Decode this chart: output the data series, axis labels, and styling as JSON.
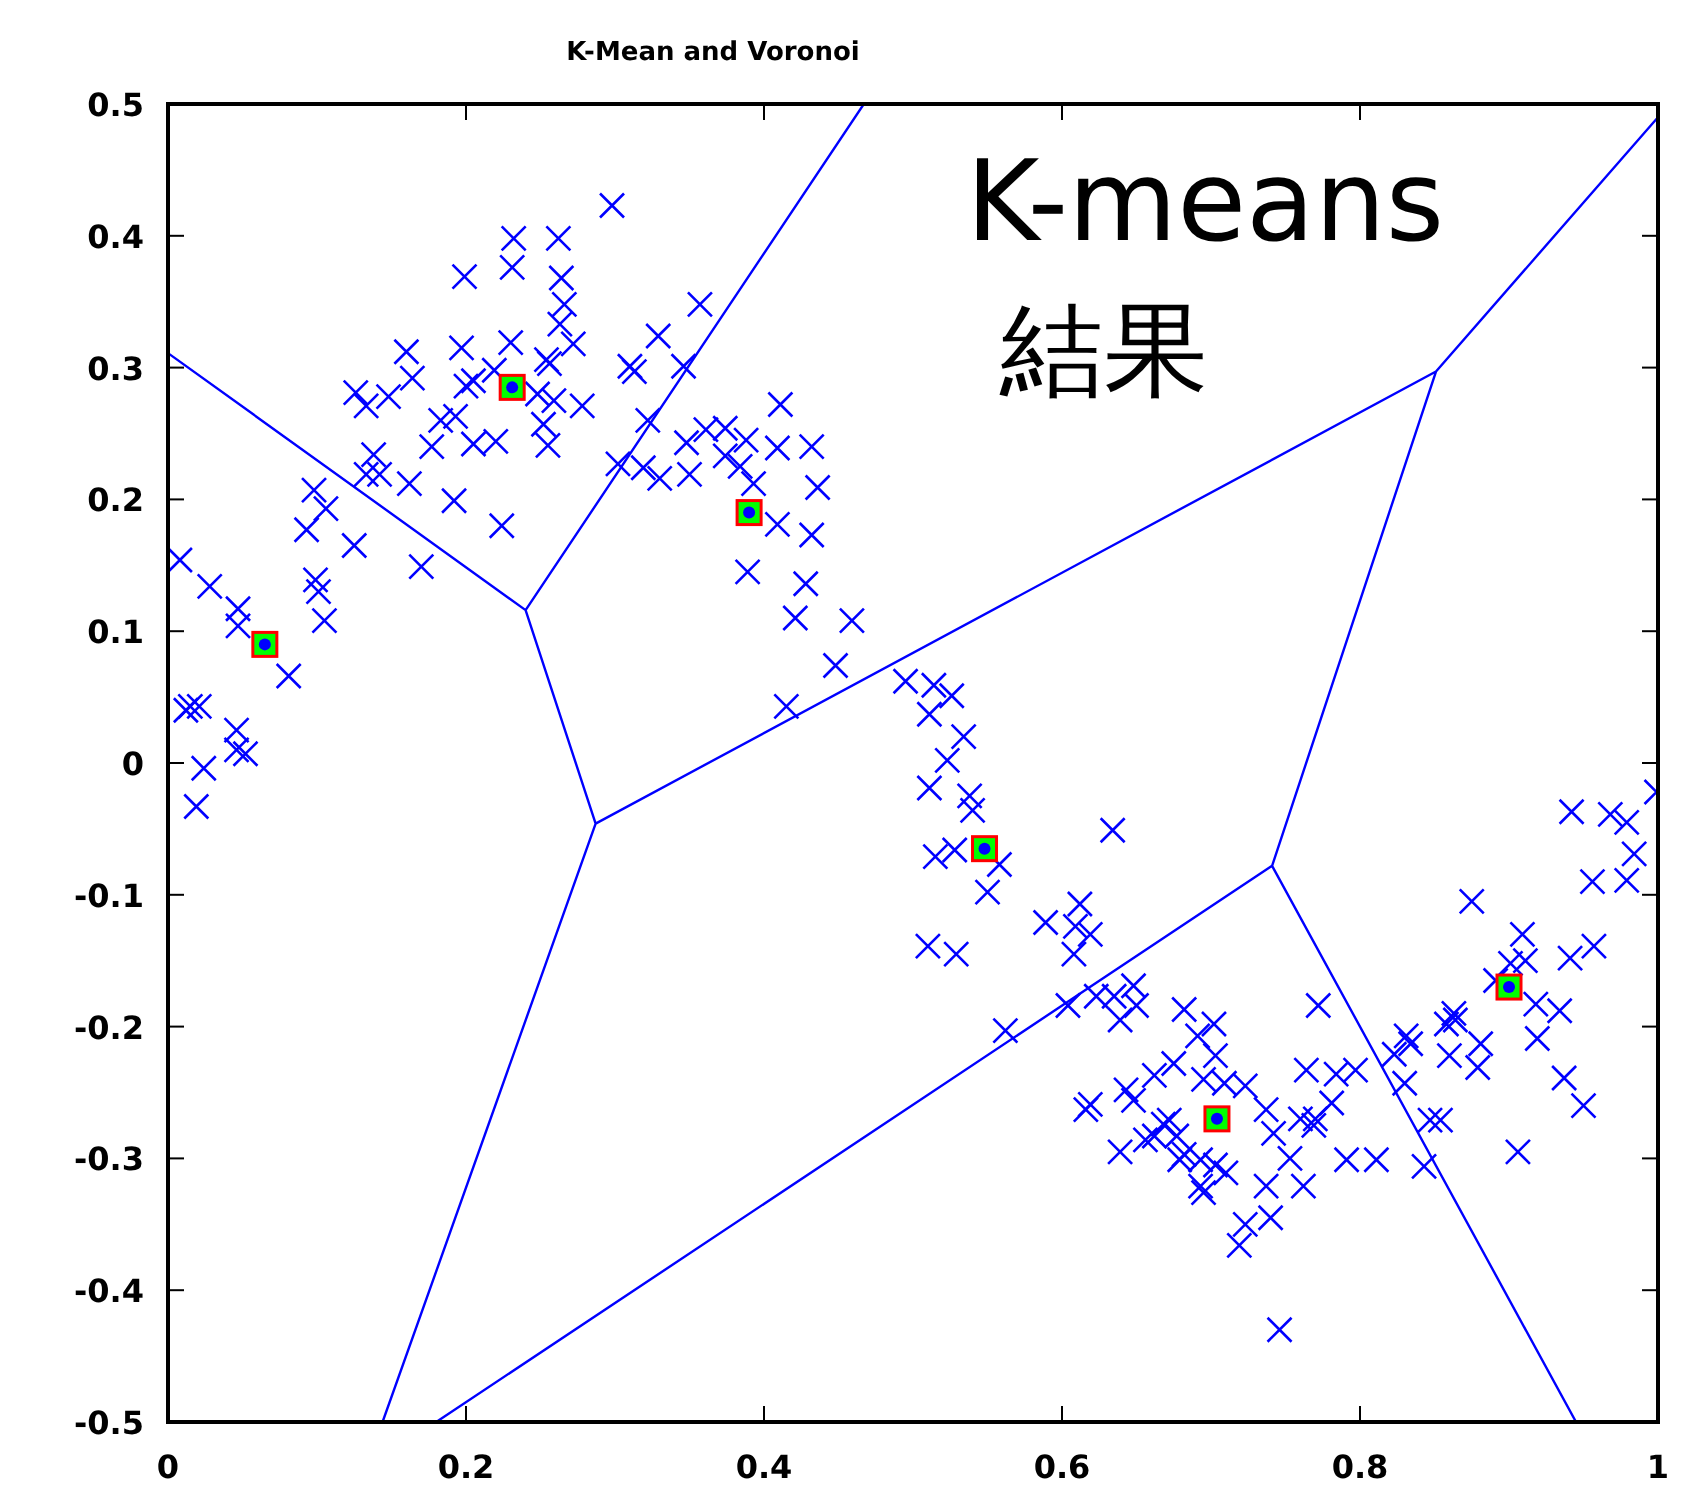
{
  "chart_data": {
    "type": "scatter",
    "title": "K-Mean and Voronoi",
    "annotations": [
      "K-means",
      "結果"
    ],
    "xlim": [
      0,
      1
    ],
    "ylim": [
      -0.5,
      0.5
    ],
    "xticks": [
      0,
      0.2,
      0.4,
      0.6,
      0.8,
      1
    ],
    "yticks": [
      -0.5,
      -0.4,
      -0.3,
      -0.2,
      -0.1,
      0,
      0.1,
      0.2,
      0.3,
      0.4,
      0.5
    ],
    "grid": false,
    "series": [
      {
        "marker": "cross",
        "color": "#0000ff",
        "x": [
          0.008,
          0.028,
          0.047,
          0.047,
          0.081,
          0.015,
          0.021,
          0.012,
          0.046,
          0.046,
          0.052,
          0.024,
          0.019,
          0.098,
          0.106,
          0.093,
          0.125,
          0.099,
          0.101,
          0.105,
          0.17,
          0.138,
          0.133,
          0.142,
          0.162,
          0.192,
          0.224,
          0.126,
          0.133,
          0.148,
          0.16,
          0.164,
          0.197,
          0.177,
          0.183,
          0.193,
          0.205,
          0.22,
          0.2,
          0.205,
          0.199,
          0.231,
          0.232,
          0.262,
          0.264,
          0.266,
          0.263,
          0.272,
          0.23,
          0.219,
          0.254,
          0.256,
          0.248,
          0.259,
          0.252,
          0.255,
          0.278,
          0.298,
          0.357,
          0.31,
          0.313,
          0.329,
          0.346,
          0.322,
          0.302,
          0.319,
          0.33,
          0.35,
          0.348,
          0.361,
          0.374,
          0.388,
          0.374,
          0.384,
          0.393,
          0.411,
          0.409,
          0.432,
          0.436,
          0.409,
          0.432,
          0.389,
          0.428,
          0.421,
          0.459,
          0.448,
          0.415,
          0.495,
          0.514,
          0.526,
          0.511,
          0.534,
          0.523,
          0.511,
          0.538,
          0.54,
          0.634,
          0.515,
          0.528,
          0.558,
          0.55,
          0.51,
          0.529,
          0.589,
          0.612,
          0.609,
          0.619,
          0.608,
          0.562,
          0.604,
          0.623,
          0.635,
          0.648,
          0.65,
          0.639,
          0.682,
          0.702,
          0.691,
          0.703,
          0.675,
          0.662,
          0.695,
          0.709,
          0.723,
          0.619,
          0.616,
          0.643,
          0.648,
          0.668,
          0.672,
          0.656,
          0.662,
          0.677,
          0.639,
          0.682,
          0.679,
          0.693,
          0.703,
          0.71,
          0.693,
          0.695,
          0.737,
          0.742,
          0.764,
          0.784,
          0.797,
          0.781,
          0.77,
          0.76,
          0.769,
          0.753,
          0.762,
          0.737,
          0.74,
          0.723,
          0.719,
          0.791,
          0.811,
          0.843,
          0.746,
          0.772,
          0.823,
          0.831,
          0.834,
          0.83,
          0.847,
          0.854,
          0.858,
          0.863,
          0.864,
          0.86,
          0.881,
          0.879,
          0.906,
          0.875,
          0.891,
          0.901,
          0.909,
          0.911,
          0.918,
          0.934,
          0.919,
          0.937,
          0.95,
          0.941,
          0.957,
          0.942,
          0.968,
          0.979,
          0.956,
          0.979,
          0.984,
          0.999
        ],
        "values": [
          0.154,
          0.134,
          0.117,
          0.104,
          0.066,
          0.043,
          0.043,
          0.04,
          0.025,
          0.01,
          0.007,
          -0.004,
          -0.033,
          0.207,
          0.193,
          0.177,
          0.165,
          0.139,
          0.13,
          0.108,
          0.149,
          0.234,
          0.219,
          0.219,
          0.212,
          0.199,
          0.18,
          0.281,
          0.271,
          0.278,
          0.312,
          0.292,
          0.315,
          0.24,
          0.26,
          0.263,
          0.242,
          0.244,
          0.286,
          0.29,
          0.369,
          0.376,
          0.398,
          0.398,
          0.368,
          0.348,
          0.333,
          0.318,
          0.319,
          0.298,
          0.306,
          0.303,
          0.28,
          0.275,
          0.257,
          0.241,
          0.271,
          0.423,
          0.348,
          0.301,
          0.297,
          0.324,
          0.301,
          0.26,
          0.227,
          0.224,
          0.216,
          0.219,
          0.243,
          0.253,
          0.254,
          0.245,
          0.233,
          0.225,
          0.212,
          0.272,
          0.239,
          0.24,
          0.209,
          0.181,
          0.173,
          0.145,
          0.136,
          0.11,
          0.108,
          0.074,
          0.043,
          0.062,
          0.059,
          0.051,
          0.037,
          0.02,
          0.002,
          -0.019,
          -0.025,
          -0.036,
          -0.051,
          -0.071,
          -0.066,
          -0.077,
          -0.098,
          -0.139,
          -0.145,
          -0.121,
          -0.107,
          -0.124,
          -0.13,
          -0.145,
          -0.203,
          -0.184,
          -0.177,
          -0.177,
          -0.169,
          -0.184,
          -0.195,
          -0.187,
          -0.198,
          -0.207,
          -0.222,
          -0.228,
          -0.237,
          -0.24,
          -0.243,
          -0.245,
          -0.259,
          -0.263,
          -0.248,
          -0.256,
          -0.274,
          -0.271,
          -0.286,
          -0.283,
          -0.283,
          -0.295,
          -0.297,
          -0.301,
          -0.301,
          -0.305,
          -0.311,
          -0.321,
          -0.326,
          -0.263,
          -0.281,
          -0.233,
          -0.236,
          -0.233,
          -0.258,
          -0.27,
          -0.27,
          -0.275,
          -0.3,
          -0.321,
          -0.321,
          -0.345,
          -0.35,
          -0.366,
          -0.301,
          -0.301,
          -0.306,
          -0.43,
          -0.184,
          -0.221,
          -0.207,
          -0.213,
          -0.243,
          -0.271,
          -0.271,
          -0.198,
          -0.19,
          -0.195,
          -0.222,
          -0.213,
          -0.231,
          -0.295,
          -0.105,
          -0.165,
          -0.152,
          -0.13,
          -0.15,
          -0.183,
          -0.188,
          -0.209,
          -0.239,
          -0.26,
          -0.148,
          -0.139,
          -0.037,
          -0.039,
          -0.045,
          -0.09,
          -0.089,
          -0.069,
          -0.022
        ]
      },
      {
        "type": "scatter",
        "marker": "square",
        "color": "#00ff00",
        "x": [
          0.065,
          0.231,
          0.39,
          0.548,
          0.704,
          0.9
        ],
        "values": [
          0.09,
          0.285,
          0.19,
          -0.065,
          -0.27,
          -0.17
        ]
      },
      {
        "type": "line",
        "color": "#0000ff",
        "x": [
          0,
          0.24,
          0.467,
          null,
          0.24,
          0.287,
          0.144,
          null,
          0.287,
          0.851,
          1,
          null,
          0.851,
          0.741,
          0.18,
          null,
          0.741,
          0.945
        ],
        "values": [
          0.311,
          0.116,
          0.5,
          null,
          0.116,
          -0.046,
          -0.5,
          null,
          -0.046,
          0.297,
          0.49,
          null,
          0.297,
          -0.078,
          -0.5,
          null,
          -0.078,
          -0.5
        ]
      }
    ]
  }
}
